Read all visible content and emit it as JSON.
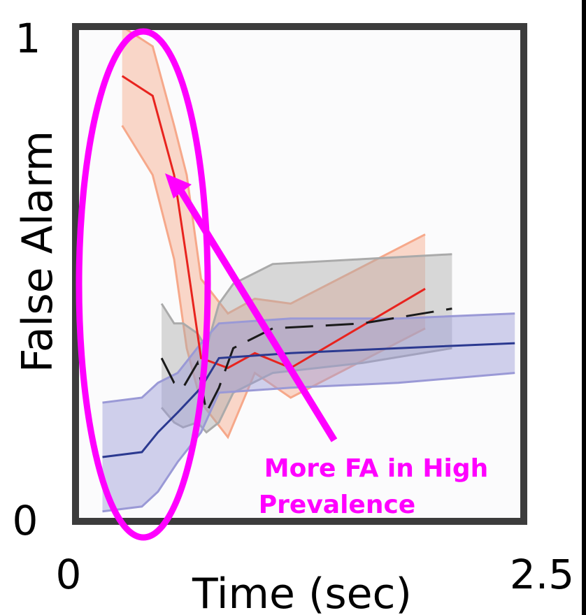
{
  "chart_data": {
    "type": "line",
    "xlabel": "Time (sec)",
    "ylabel": "False Alarm",
    "xlim": [
      0,
      2.5
    ],
    "ylim": [
      0,
      1
    ],
    "x_tick_labels": [
      "0",
      "2.5"
    ],
    "y_tick_labels": [
      "0",
      "1"
    ],
    "grid": false,
    "legend": "none",
    "series": [
      {
        "color": "#e8231e",
        "band_color": "#f6a88a",
        "x": [
          0.26,
          0.43,
          0.55,
          0.62,
          0.7,
          0.85,
          1.0,
          1.2,
          1.95
        ],
        "y": [
          0.9,
          0.86,
          0.7,
          0.53,
          0.33,
          0.31,
          0.34,
          0.31,
          0.47
        ],
        "lower": [
          0.8,
          0.7,
          0.53,
          0.35,
          0.24,
          0.17,
          0.3,
          0.25,
          0.39
        ],
        "upper": [
          1.0,
          0.96,
          0.8,
          0.7,
          0.49,
          0.42,
          0.45,
          0.44,
          0.58
        ]
      },
      {
        "color": "#1a1a1a",
        "band_color": "#aaaaaa",
        "dashed": true,
        "x": [
          0.48,
          0.55,
          0.6,
          0.68,
          0.73,
          0.8,
          0.88,
          1.1,
          1.6,
          2.1
        ],
        "y": [
          0.33,
          0.28,
          0.27,
          0.32,
          0.22,
          0.27,
          0.35,
          0.39,
          0.4,
          0.43
        ],
        "lower": [
          0.23,
          0.2,
          0.19,
          0.2,
          0.18,
          0.2,
          0.26,
          0.3,
          0.32,
          0.35
        ],
        "upper": [
          0.44,
          0.4,
          0.4,
          0.38,
          0.35,
          0.44,
          0.48,
          0.52,
          0.53,
          0.54
        ]
      },
      {
        "color": "#2b3990",
        "band_color": "#9a99d6",
        "x": [
          0.15,
          0.37,
          0.46,
          0.57,
          0.7,
          0.8,
          1.2,
          1.8,
          2.45
        ],
        "y": [
          0.13,
          0.14,
          0.18,
          0.22,
          0.27,
          0.33,
          0.34,
          0.35,
          0.36
        ],
        "lower": [
          0.02,
          0.03,
          0.06,
          0.12,
          0.18,
          0.26,
          0.27,
          0.28,
          0.3
        ],
        "upper": [
          0.24,
          0.25,
          0.28,
          0.3,
          0.36,
          0.4,
          0.41,
          0.41,
          0.42
        ]
      }
    ],
    "annotation": {
      "text_line1": "More FA in High",
      "text_line2": "Prevalence",
      "color": "#ff00ff"
    }
  }
}
